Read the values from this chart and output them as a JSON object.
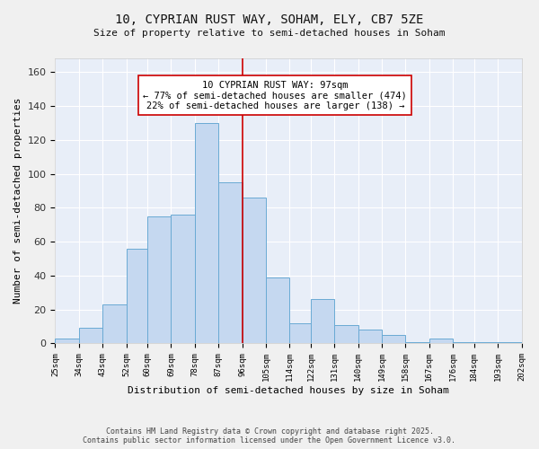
{
  "title": "10, CYPRIAN RUST WAY, SOHAM, ELY, CB7 5ZE",
  "subtitle": "Size of property relative to semi-detached houses in Soham",
  "xlabel": "Distribution of semi-detached houses by size in Soham",
  "ylabel": "Number of semi-detached properties",
  "bin_edges": [
    25,
    34,
    43,
    52,
    60,
    69,
    78,
    87,
    96,
    105,
    114,
    122,
    131,
    140,
    149,
    158,
    167,
    176,
    184,
    193,
    202
  ],
  "bar_heights": [
    3,
    9,
    23,
    56,
    75,
    76,
    130,
    95,
    86,
    39,
    12,
    26,
    11,
    8,
    5,
    1,
    3,
    1,
    1,
    1
  ],
  "categories": [
    "25sqm",
    "34sqm",
    "43sqm",
    "52sqm",
    "60sqm",
    "69sqm",
    "78sqm",
    "87sqm",
    "96sqm",
    "105sqm",
    "114sqm",
    "122sqm",
    "131sqm",
    "140sqm",
    "149sqm",
    "158sqm",
    "167sqm",
    "176sqm",
    "184sqm",
    "193sqm",
    "202sqm"
  ],
  "bar_color": "#c5d8f0",
  "bar_edge_color": "#6aaad4",
  "vline_x": 96,
  "vline_color": "#cc0000",
  "annotation_text": "10 CYPRIAN RUST WAY: 97sqm\n← 77% of semi-detached houses are smaller (474)\n22% of semi-detached houses are larger (138) →",
  "annotation_box_color": "#ffffff",
  "annotation_box_edge": "#cc0000",
  "ylim": [
    0,
    168
  ],
  "yticks": [
    0,
    20,
    40,
    60,
    80,
    100,
    120,
    140,
    160
  ],
  "plot_bg_color": "#e8eef8",
  "fig_bg_color": "#f0f0f0",
  "footnote": "Contains HM Land Registry data © Crown copyright and database right 2025.\nContains public sector information licensed under the Open Government Licence v3.0.",
  "title_fontsize": 10,
  "subtitle_fontsize": 8,
  "ylabel_fontsize": 8,
  "xlabel_fontsize": 8,
  "annotation_fontsize": 7.5
}
